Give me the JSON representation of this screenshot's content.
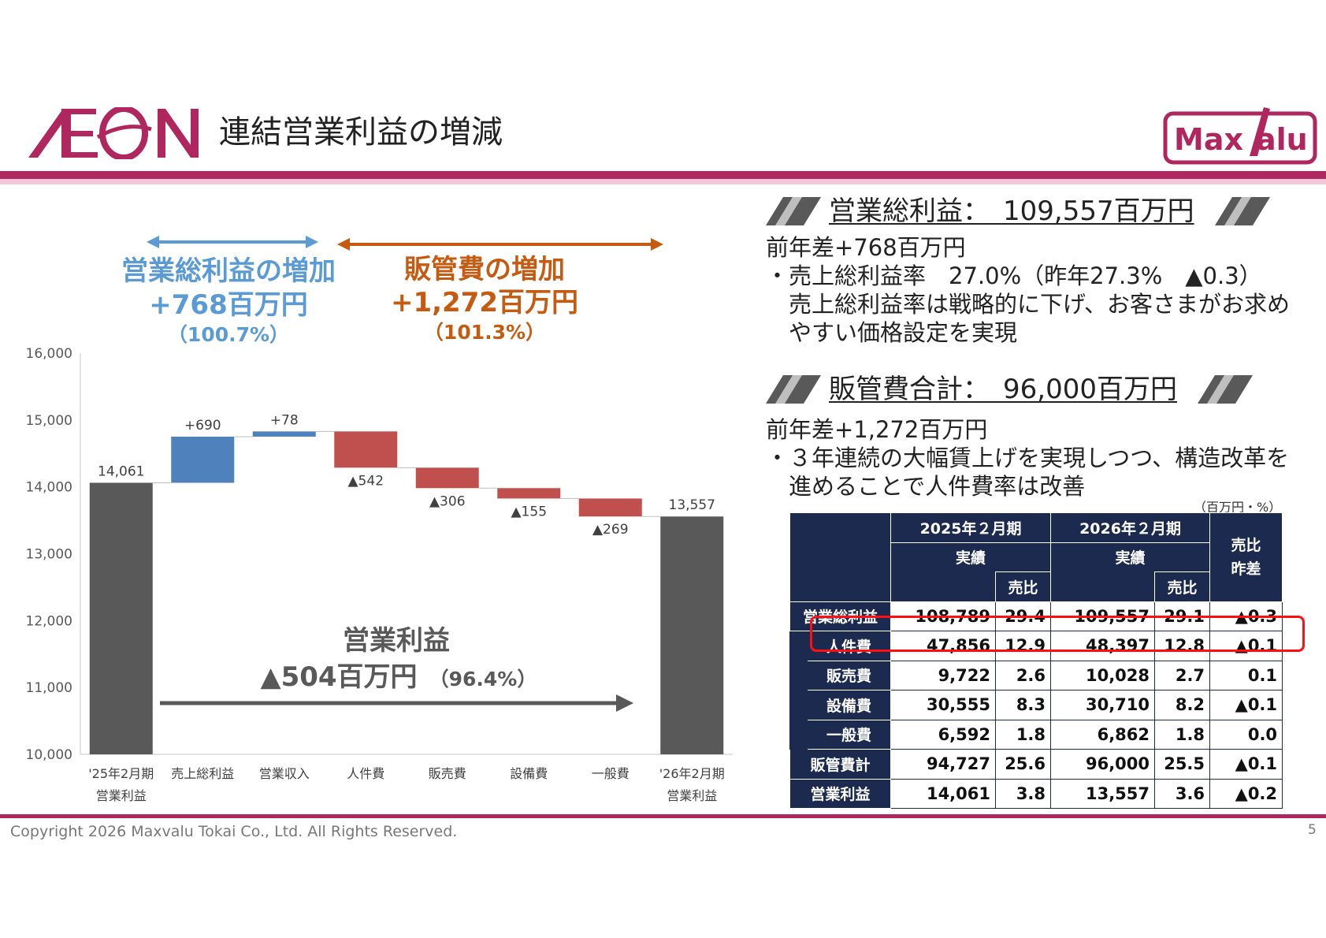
{
  "header": {
    "title": "連結営業利益の増減",
    "aeon_logo_text": "AEON",
    "maxvalu_logo_text": "MaxValu",
    "brand_color": "#b0265e",
    "brand_light": "#f4c7d8"
  },
  "annotations": {
    "gross_profit": {
      "title": "営業総利益の増加",
      "amount": "+768百万円",
      "ratio": "（100.7%）",
      "color": "#5b9bd5"
    },
    "sga": {
      "title": "販管費の増加",
      "amount": "+1,272百万円",
      "ratio": "（101.3%）",
      "color": "#c55a11"
    },
    "operating_profit": {
      "title": "営業利益",
      "amount": "▲504百万円",
      "ratio": "（96.4%）",
      "color": "#595959"
    }
  },
  "chart_data": {
    "type": "bar",
    "subtype": "waterfall",
    "ylim": [
      10000,
      16000
    ],
    "yticks": [
      "10,000",
      "11,000",
      "12,000",
      "13,000",
      "14,000",
      "15,000",
      "16,000"
    ],
    "grid": false,
    "categories": [
      {
        "line1": "'25年2月期",
        "line2": "営業利益"
      },
      {
        "line1": "売上総利益",
        "line2": ""
      },
      {
        "line1": "営業収入",
        "line2": ""
      },
      {
        "line1": "人件費",
        "line2": ""
      },
      {
        "line1": "販売費",
        "line2": ""
      },
      {
        "line1": "設備費",
        "line2": ""
      },
      {
        "line1": "一般費",
        "line2": ""
      },
      {
        "line1": "'26年2月期",
        "line2": "営業利益"
      }
    ],
    "bars": [
      {
        "kind": "total",
        "start": 10000,
        "end": 14061,
        "label": "14,061"
      },
      {
        "kind": "increase",
        "start": 14061,
        "end": 14751,
        "label": "+690"
      },
      {
        "kind": "increase",
        "start": 14751,
        "end": 14829,
        "label": "+78"
      },
      {
        "kind": "decrease",
        "start": 14829,
        "end": 14287,
        "label": "▲542"
      },
      {
        "kind": "decrease",
        "start": 14287,
        "end": 13981,
        "label": "▲306"
      },
      {
        "kind": "decrease",
        "start": 13981,
        "end": 13826,
        "label": "▲155"
      },
      {
        "kind": "decrease",
        "start": 13826,
        "end": 13557,
        "label": "▲269"
      },
      {
        "kind": "total",
        "start": 10000,
        "end": 13557,
        "label": "13,557"
      }
    ],
    "colors": {
      "total": "#595959",
      "increase": "#4f81bd",
      "decrease": "#c0504d"
    }
  },
  "right": {
    "gross": {
      "label": "営業総利益：　109,557百万円",
      "lines": [
        "前年差+768百万円",
        "・売上総利益率　27.0%（昨年27.3%　▲0.3）",
        "　売上総利益率は戦略的に下げ、お客さまがお求め",
        "　やすい価格設定を実現"
      ]
    },
    "sga": {
      "label": "販管費合計：　96,000百万円",
      "lines": [
        "前年差+1,272百万円",
        "・３年連続の大幅賃上げを実現しつつ、構造改革を",
        "　進めることで人件費率は改善"
      ]
    },
    "unit_note": "（百万円・%）"
  },
  "table": {
    "header": {
      "fy2025": "2025年２月期",
      "fy2026": "2026年２月期",
      "actual": "実績",
      "ratio": "売比",
      "diff": "売比\n昨差"
    },
    "rows": [
      {
        "label": "営業総利益",
        "indent": false,
        "v25": "108,789",
        "r25": "29.4",
        "v26": "109,557",
        "r26": "29.1",
        "diff": "▲0.3"
      },
      {
        "label": "人件費",
        "indent": true,
        "v25": "47,856",
        "r25": "12.9",
        "v26": "48,397",
        "r26": "12.8",
        "diff": "▲0.1"
      },
      {
        "label": "販売費",
        "indent": true,
        "v25": "9,722",
        "r25": "2.6",
        "v26": "10,028",
        "r26": "2.7",
        "diff": "0.1"
      },
      {
        "label": "設備費",
        "indent": true,
        "v25": "30,555",
        "r25": "8.3",
        "v26": "30,710",
        "r26": "8.2",
        "diff": "▲0.1"
      },
      {
        "label": "一般費",
        "indent": true,
        "v25": "6,592",
        "r25": "1.8",
        "v26": "6,862",
        "r26": "1.8",
        "diff": "0.0"
      },
      {
        "label": "販管費計",
        "indent": false,
        "v25": "94,727",
        "r25": "25.6",
        "v26": "96,000",
        "r26": "25.5",
        "diff": "▲0.1"
      },
      {
        "label": "営業利益",
        "indent": false,
        "v25": "14,061",
        "r25": "3.8",
        "v26": "13,557",
        "r26": "3.6",
        "diff": "▲0.2"
      }
    ],
    "header_bg": "#1c2a4f",
    "highlight_color": "#ff1010"
  },
  "footer": {
    "copyright": "Copyright 2026 Maxvalu Tokai Co., Ltd. All Rights Reserved.",
    "page": "5"
  }
}
